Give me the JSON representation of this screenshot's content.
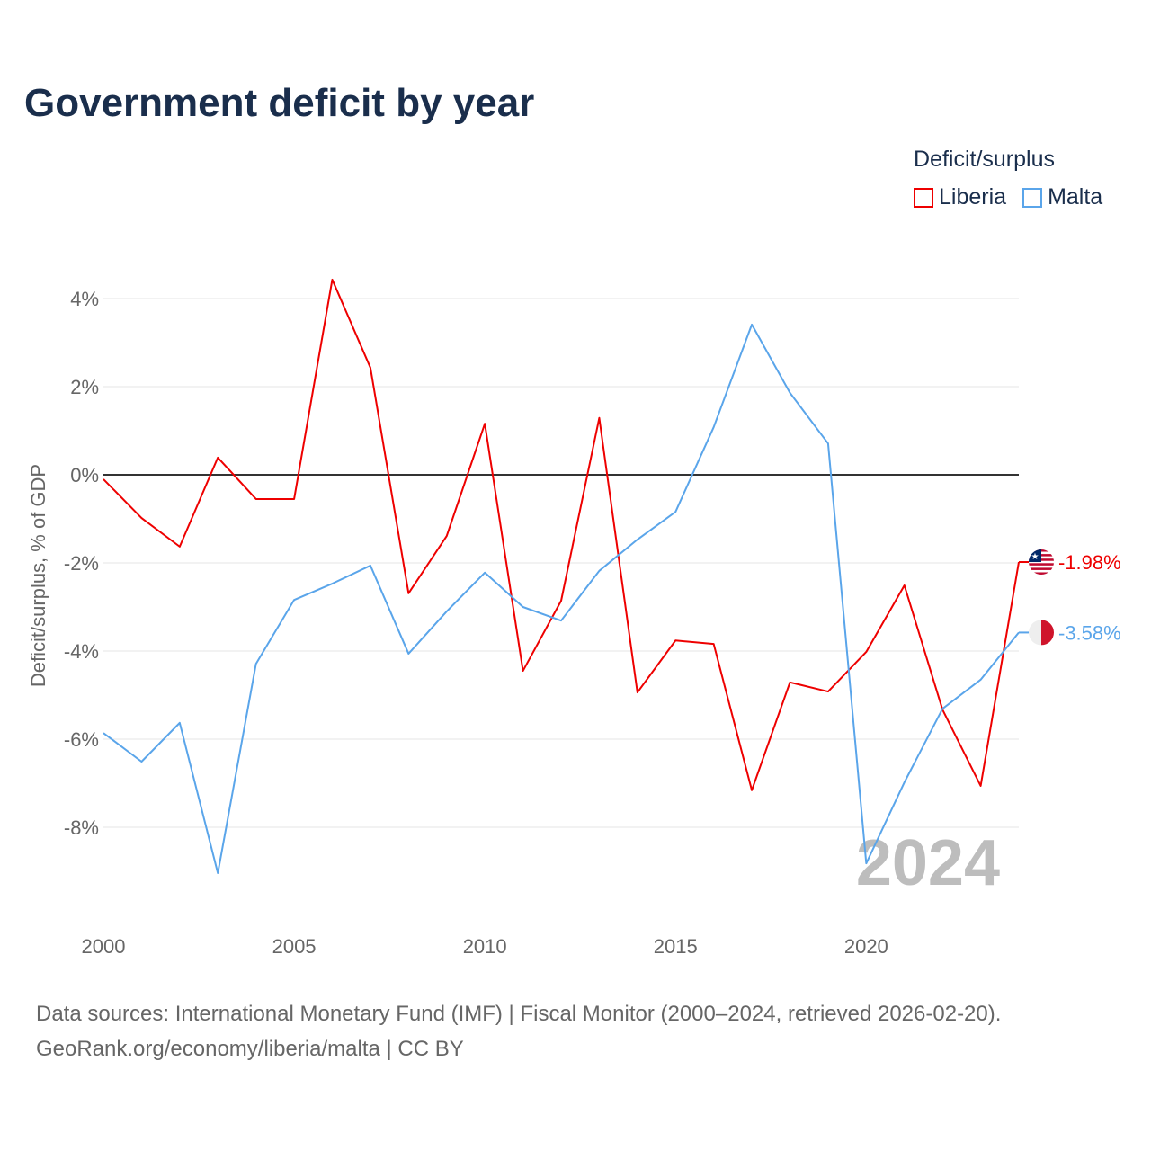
{
  "chart_data": {
    "type": "line",
    "title": "Government deficit by year",
    "xlabel": "",
    "ylabel": "Deficit/surplus, % of GDP",
    "x": [
      2000,
      2001,
      2002,
      2003,
      2004,
      2005,
      2006,
      2007,
      2008,
      2009,
      2010,
      2011,
      2012,
      2013,
      2014,
      2015,
      2016,
      2017,
      2018,
      2019,
      2020,
      2021,
      2022,
      2023,
      2024
    ],
    "xticks": [
      "2000",
      "2005",
      "2010",
      "2015",
      "2020"
    ],
    "yticks": [
      "4%",
      "2%",
      "0%",
      "-2%",
      "-4%",
      "-6%",
      "-8%"
    ],
    "ylim": [
      -10,
      4.5
    ],
    "legend_title": "Deficit/surplus",
    "legend_position": "top-right",
    "year_watermark": "2024",
    "series": [
      {
        "name": "Liberia",
        "color": "#ee0000",
        "end_label": "-1.98%",
        "values": [
          -0.1,
          -0.98,
          -1.63,
          0.39,
          -0.55,
          -0.55,
          4.43,
          2.43,
          -2.69,
          -1.39,
          1.16,
          -4.45,
          -2.86,
          1.29,
          -4.94,
          -3.76,
          -3.84,
          -7.16,
          -4.71,
          -4.92,
          -4.02,
          -2.51,
          -5.33,
          -7.06,
          -1.98
        ]
      },
      {
        "name": "Malta",
        "color": "#5aa5ea",
        "end_label": "-3.58%",
        "values": [
          -5.86,
          -6.51,
          -5.63,
          -9.04,
          -4.29,
          -2.84,
          -2.47,
          -2.06,
          -4.06,
          -3.1,
          -2.22,
          -3.0,
          -3.31,
          -2.18,
          -1.47,
          -0.84,
          1.08,
          3.41,
          1.86,
          0.71,
          -8.82,
          -6.98,
          -5.31,
          -4.65,
          -3.58
        ]
      }
    ]
  },
  "source_line1": "Data sources: International Monetary Fund (IMF) | Fiscal Monitor (2000–2024, retrieved 2026-02-20).",
  "source_line2": "GeoRank.org/economy/liberia/malta | CC BY"
}
